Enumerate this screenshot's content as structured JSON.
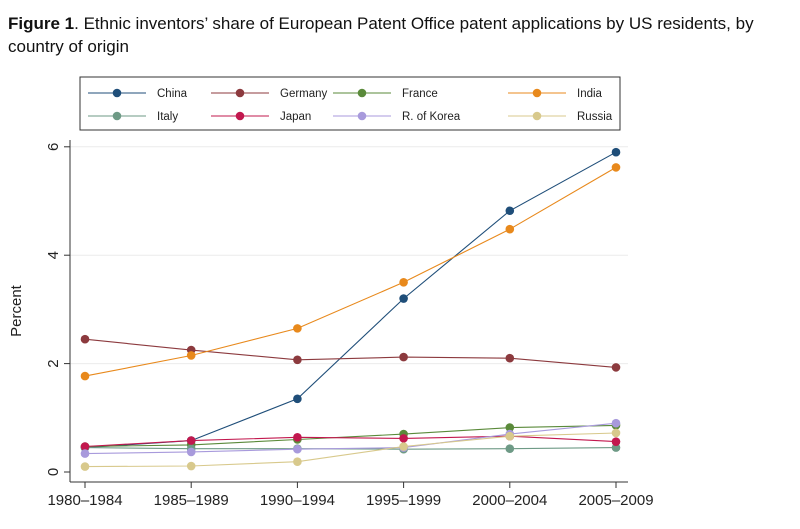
{
  "caption": {
    "label": "Figure 1",
    "text": ". Ethnic inventors’ share of European Patent Office patent applications by US residents, by country of origin"
  },
  "chart_data": {
    "type": "line",
    "title": "Ethnic inventors’ share of European Patent Office patent applications by US residents, by country of origin",
    "xlabel": "",
    "ylabel": "Percent",
    "categories": [
      "1980–1984",
      "1985–1989",
      "1990–1994",
      "1995–1999",
      "2000–2004",
      "2005–2009"
    ],
    "yticks": [
      0,
      2,
      4,
      6
    ],
    "ylim": [
      -0.15,
      6.2
    ],
    "grid": true,
    "legend_position": "top",
    "series": [
      {
        "name": "China",
        "color": "#1f4e79",
        "values": [
          0.45,
          0.58,
          1.35,
          3.2,
          4.82,
          5.9
        ]
      },
      {
        "name": "Germany",
        "color": "#8c3a3e",
        "values": [
          2.45,
          2.25,
          2.07,
          2.12,
          2.1,
          1.93
        ]
      },
      {
        "name": "France",
        "color": "#5a8a3a",
        "values": [
          0.47,
          0.5,
          0.6,
          0.7,
          0.82,
          0.86
        ]
      },
      {
        "name": "India",
        "color": "#e8891c",
        "values": [
          1.77,
          2.15,
          2.65,
          3.5,
          4.48,
          5.62
        ]
      },
      {
        "name": "Italy",
        "color": "#6e9a86",
        "values": [
          0.45,
          0.43,
          0.43,
          0.42,
          0.43,
          0.45
        ]
      },
      {
        "name": "Japan",
        "color": "#c2184e",
        "values": [
          0.47,
          0.58,
          0.64,
          0.62,
          0.66,
          0.56
        ]
      },
      {
        "name": "R. of Korea",
        "color": "#a89adc",
        "values": [
          0.34,
          0.37,
          0.42,
          0.45,
          0.7,
          0.9
        ]
      },
      {
        "name": "Russia",
        "color": "#d8c98c",
        "values": [
          0.1,
          0.11,
          0.19,
          0.47,
          0.66,
          0.72
        ]
      }
    ]
  }
}
